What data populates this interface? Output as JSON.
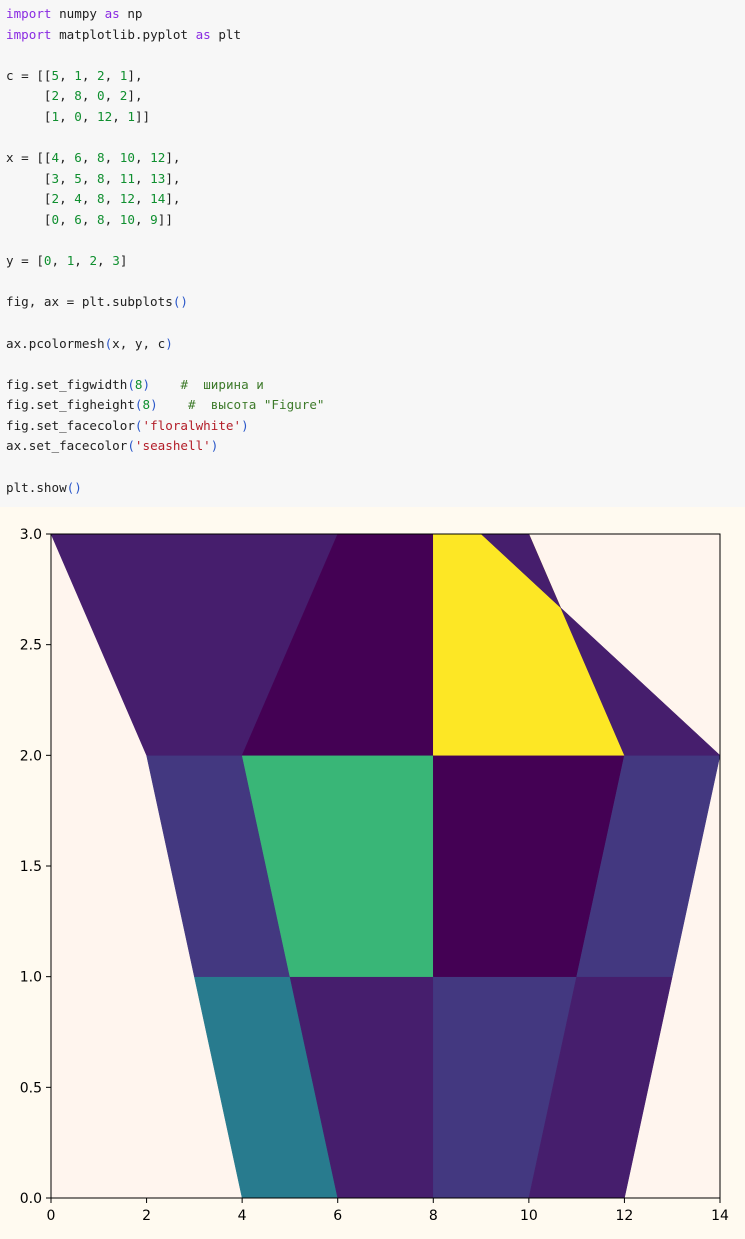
{
  "code_lines": [
    "import numpy as np",
    "import matplotlib.pyplot as plt",
    "",
    "c = [[5, 1, 2, 1],",
    "     [2, 8, 0, 2],",
    "     [1, 0, 12, 1]]",
    "",
    "x = [[4, 6, 8, 10, 12],",
    "     [3, 5, 8, 11, 13],",
    "     [2, 4, 8, 12, 14],",
    "     [0, 6, 8, 10, 9]]",
    "",
    "y = [0, 1, 2, 3]",
    "",
    "fig, ax = plt.subplots()",
    "",
    "ax.pcolormesh(x, y, c)",
    "",
    "fig.set_figwidth(8)    #  ширина и",
    "fig.set_figheight(8)    #  высота \"Figure\"",
    "fig.set_facecolor('floralwhite')",
    "ax.set_facecolor('seashell')",
    "",
    "plt.show()"
  ],
  "colors": {
    "code_background": "#f7f7f7",
    "figure_facecolor": "#fffaf0",
    "axes_facecolor": "#fff5ee",
    "keyword": "#8a2be2",
    "number": "#0f8f2f",
    "string": "#b31d28",
    "comment": "#3d7a2a"
  },
  "chart_data": {
    "type": "heatmap",
    "title": "",
    "xlabel": "",
    "ylabel": "",
    "xlim": [
      0,
      14
    ],
    "ylim": [
      0,
      3
    ],
    "x_ticks": [
      0,
      2,
      4,
      6,
      8,
      10,
      12,
      14
    ],
    "y_ticks": [
      0.0,
      0.5,
      1.0,
      1.5,
      2.0,
      2.5,
      3.0
    ],
    "x_tick_labels": [
      "0",
      "2",
      "4",
      "6",
      "8",
      "10",
      "12",
      "14"
    ],
    "y_tick_labels": [
      "0.0",
      "0.5",
      "1.0",
      "1.5",
      "2.0",
      "2.5",
      "3.0"
    ],
    "grid": false,
    "colormap": "viridis",
    "vmin": 0,
    "vmax": 12,
    "mesh_x": [
      [
        4,
        6,
        8,
        10,
        12
      ],
      [
        3,
        5,
        8,
        11,
        13
      ],
      [
        2,
        4,
        8,
        12,
        14
      ],
      [
        0,
        6,
        8,
        10,
        9
      ]
    ],
    "mesh_y": [
      0,
      1,
      2,
      3
    ],
    "values": [
      [
        5,
        1,
        2,
        1
      ],
      [
        2,
        8,
        0,
        2
      ],
      [
        1,
        0,
        12,
        1
      ]
    ]
  }
}
